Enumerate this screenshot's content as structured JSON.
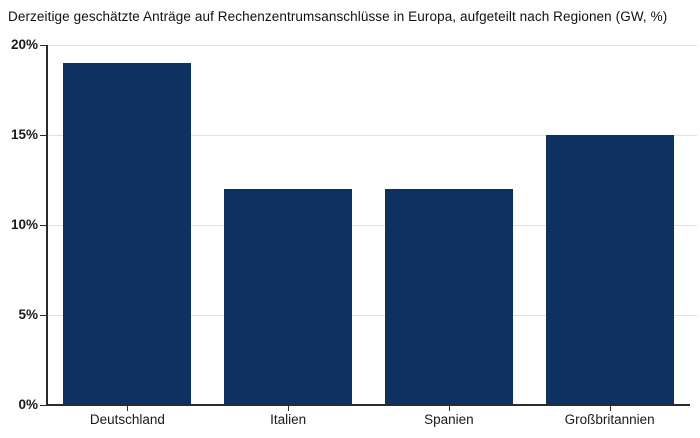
{
  "header": {
    "title": "Derzeitige geschätzte Anträge auf Rechenzentrumsanschlüsse in Europa, aufgeteilt nach Regionen (GW, %)"
  },
  "chart_data": {
    "type": "bar",
    "title": "Derzeitige geschätzte Anträge auf Rechenzentrumsanschlüsse in Europa, aufgeteilt nach Regionen (GW, %)",
    "categories": [
      "Deutschland",
      "Italien",
      "Spanien",
      "Großbritannien"
    ],
    "values": [
      19,
      12,
      12,
      15
    ],
    "unit": "%",
    "xlabel": "",
    "ylabel": "",
    "ylim": [
      0,
      20
    ],
    "y_ticks": [
      0,
      5,
      10,
      15,
      20
    ],
    "y_tick_labels": [
      "0%",
      "5%",
      "10%",
      "15%",
      "20%"
    ],
    "grid": true,
    "legend": false,
    "colors": {
      "bar": "#0f3161",
      "gridline": "#e0e0e0",
      "axis": "#2b2b2b",
      "text": "#1a1a1a",
      "background": "#ffffff"
    }
  }
}
